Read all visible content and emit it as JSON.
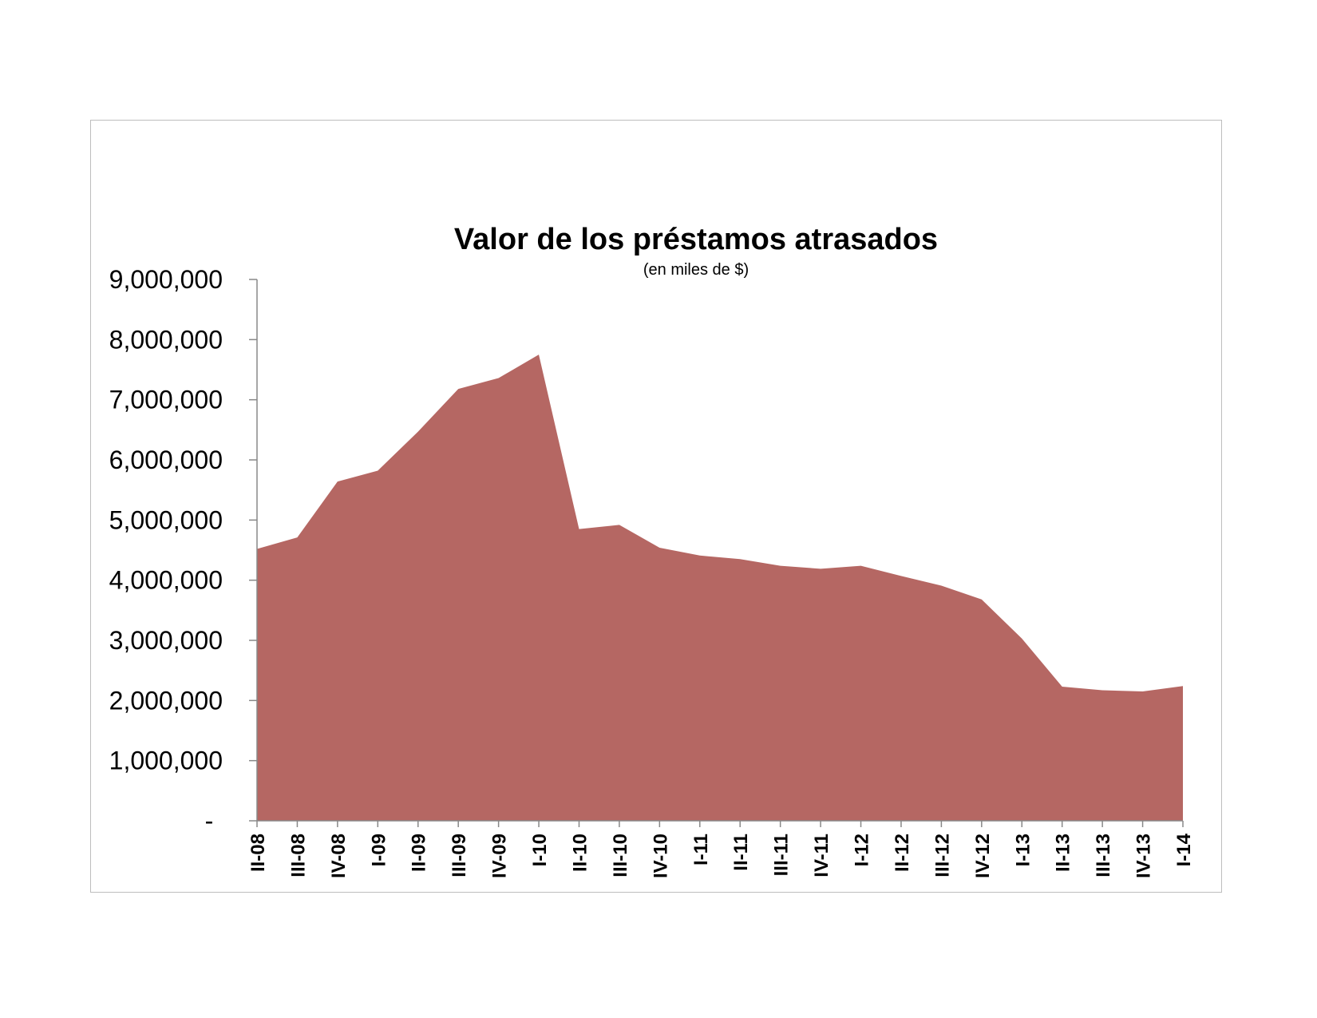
{
  "chart_data": {
    "type": "area",
    "title": "Valor de los préstamos atrasados",
    "subtitle": "(en miles de $)",
    "xlabel": "",
    "ylabel": "",
    "categories": [
      "II-08",
      "III-08",
      "IV-08",
      "I-09",
      "II-09",
      "III-09",
      "IV-09",
      "I-10",
      "II-10",
      "III-10",
      "IV-10",
      "I-11",
      "II-11",
      "III-11",
      "IV-11",
      "I-12",
      "II-12",
      "III-12",
      "IV-12",
      "I-13",
      "II-13",
      "III-13",
      "IV-13",
      "I-14"
    ],
    "values": [
      4520000,
      4710000,
      5640000,
      5820000,
      6470000,
      7180000,
      7360000,
      7750000,
      4850000,
      4920000,
      4540000,
      4410000,
      4350000,
      4240000,
      4190000,
      4240000,
      4070000,
      3910000,
      3680000,
      3030000,
      2230000,
      2170000,
      2150000,
      2240000
    ],
    "ylim": [
      0,
      9000000
    ],
    "yticks": [
      "-",
      "1,000,000",
      "2,000,000",
      "3,000,000",
      "4,000,000",
      "5,000,000",
      "6,000,000",
      "7,000,000",
      "8,000,000",
      "9,000,000"
    ],
    "grid": false,
    "legend": "none",
    "colors": {
      "fill": "#b56763",
      "axis": "#888888",
      "frame": "#bdbdbd"
    }
  }
}
